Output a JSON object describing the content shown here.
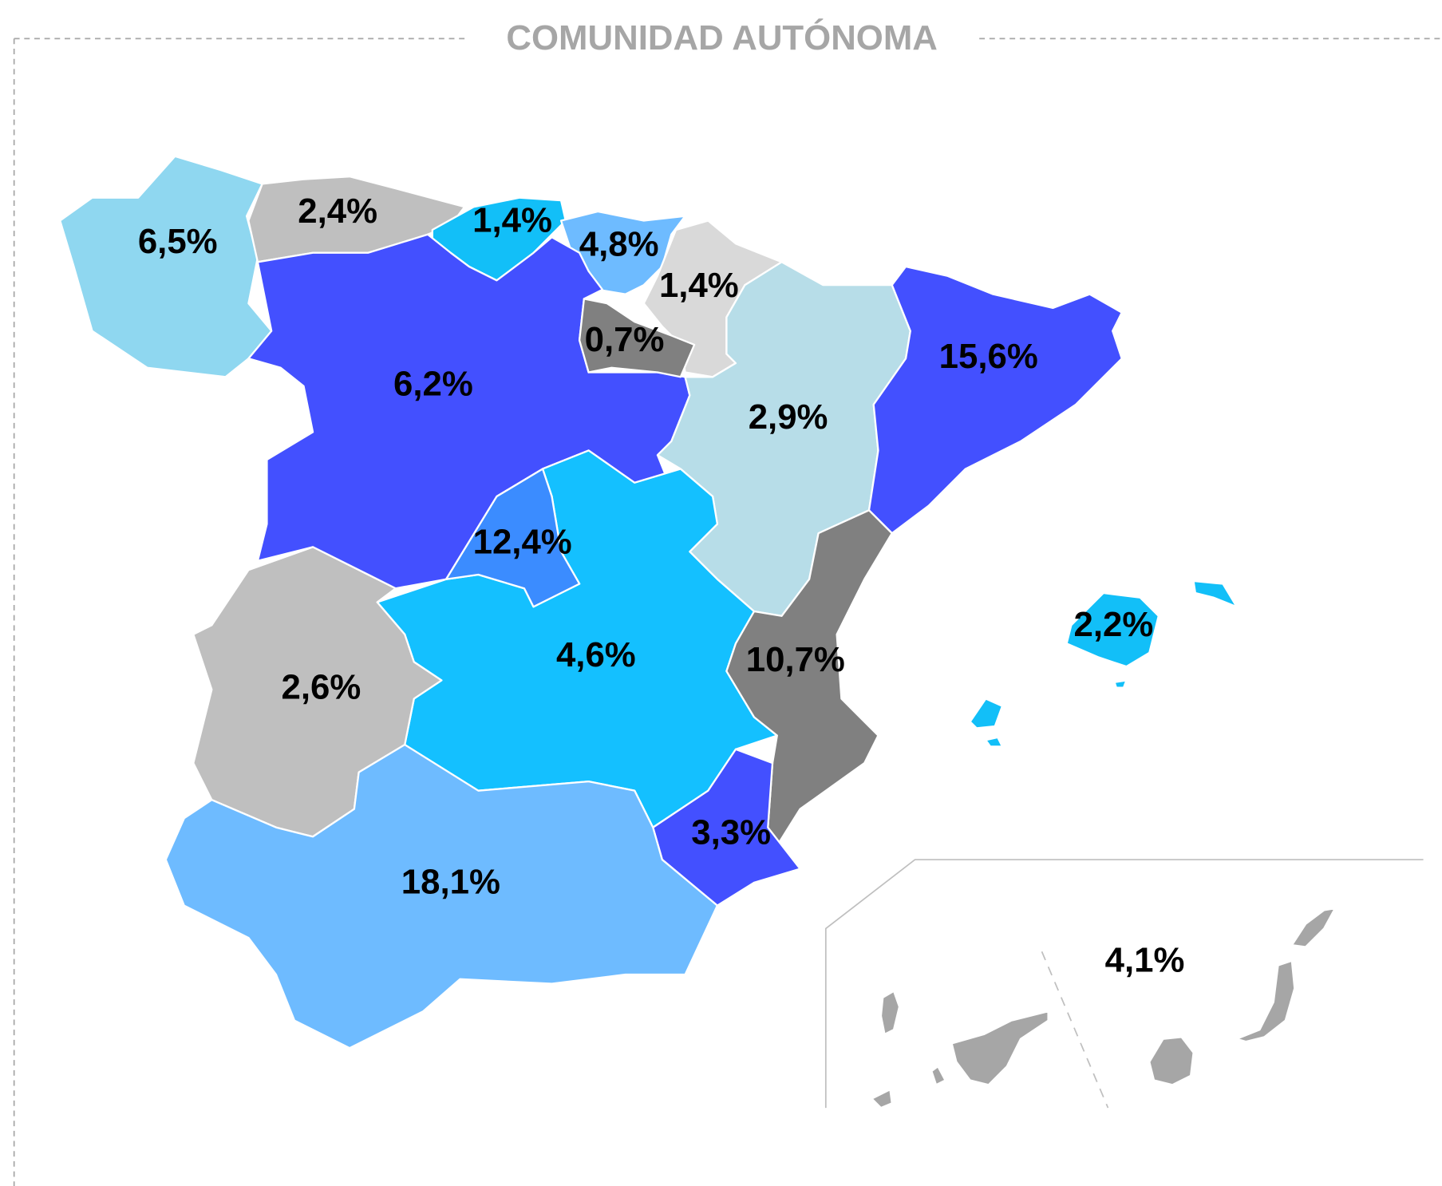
{
  "title": "COMUNIDAD AUTÓNOMA",
  "regions": [
    {
      "label": "6,5%",
      "color": "#8fd7f0"
    },
    {
      "label": "2,4%",
      "color": "#bfbfbf"
    },
    {
      "label": "1,4%",
      "color": "#12bff8"
    },
    {
      "label": "4,8%",
      "color": "#6ebbff"
    },
    {
      "label": "1,4%",
      "color": "#d9d9d9"
    },
    {
      "label": "0,7%",
      "color": "#808080"
    },
    {
      "label": "6,2%",
      "color": "#4350ff"
    },
    {
      "label": "2,9%",
      "color": "#b7dde8"
    },
    {
      "label": "15,6%",
      "color": "#4350ff"
    },
    {
      "label": "12,4%",
      "color": "#3b8cff"
    },
    {
      "label": "4,6%",
      "color": "#14c0ff"
    },
    {
      "label": "10,7%",
      "color": "#808080"
    },
    {
      "label": "3,3%",
      "color": "#4350ff"
    },
    {
      "label": "2,6%",
      "color": "#bfbfbf"
    },
    {
      "label": "18,1%",
      "color": "#6ebbff"
    },
    {
      "label": "2,2%",
      "color": "#12bff8"
    },
    {
      "label": "4,1%",
      "color": "#a6a6a6"
    }
  ]
}
